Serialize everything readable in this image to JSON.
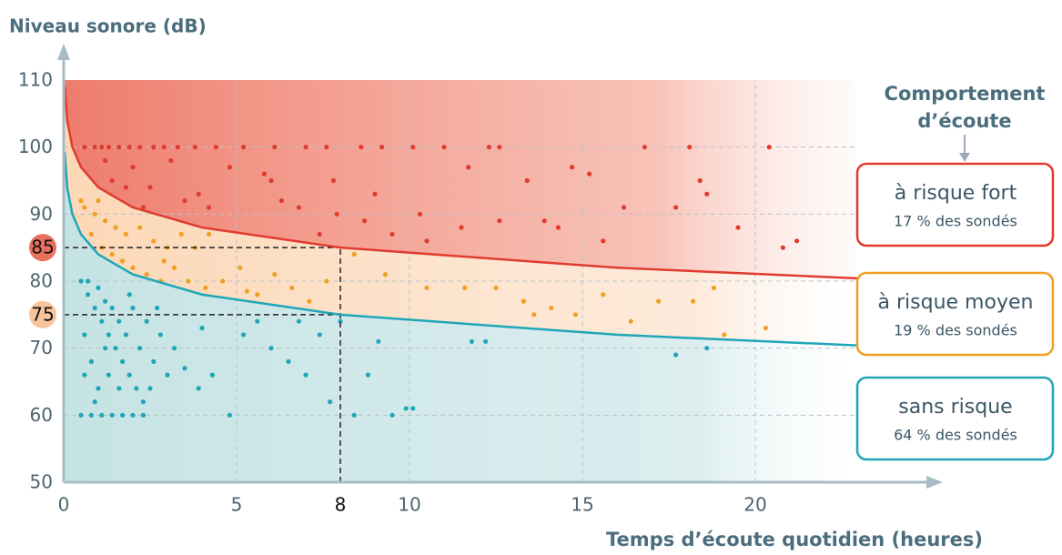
{
  "chart_data": {
    "type": "scatter",
    "y_label": "Niveau sonore (dB)",
    "x_label": "Temps d’écoute quotidien (heures)",
    "legend_title": [
      "Comportement",
      "d’écoute"
    ],
    "xlim": [
      0,
      25
    ],
    "ylim": [
      50,
      110
    ],
    "xticks": [
      0,
      5,
      8,
      10,
      15,
      20
    ],
    "yticks": [
      50,
      60,
      70,
      75,
      80,
      85,
      90,
      100,
      110
    ],
    "highlight_xticks": [
      8
    ],
    "highlight_yticks": [
      {
        "value": 85,
        "color": "#e9705c"
      },
      {
        "value": 75,
        "color": "#f7c49c"
      }
    ],
    "grid_x": [
      5,
      10,
      15,
      20
    ],
    "grid_y": [
      60,
      70,
      80,
      90,
      100
    ],
    "reference_lines": {
      "x": 8,
      "y": [
        85,
        75
      ]
    },
    "curves": [
      {
        "color": "#e03b2e",
        "x": [
          0.03,
          0.1,
          0.25,
          0.5,
          1,
          2,
          4,
          8,
          16,
          23
        ],
        "values": [
          109.2,
          104,
          100,
          97,
          94,
          91,
          88,
          85,
          82,
          80.4
        ]
      },
      {
        "color": "#1fa6b8",
        "x": [
          0.03,
          0.1,
          0.25,
          0.5,
          1,
          2,
          4,
          8,
          16,
          23
        ],
        "values": [
          99.2,
          94,
          90,
          87,
          84,
          81,
          78,
          75,
          72,
          70.4
        ]
      }
    ],
    "series": [
      {
        "name": "à risque fort",
        "share": "17 % des sondés",
        "color": "#e03b2e",
        "x": [
          0.6,
          0.9,
          1.1,
          1.3,
          1.6,
          1.9,
          2.2,
          2.6,
          2.9,
          3.3,
          3.8,
          4.4,
          5.2,
          6.1,
          7.0,
          7.6,
          8.6,
          9.2,
          10.1,
          11.0,
          12.3,
          12.6,
          16.8,
          18.1,
          20.4,
          1.2,
          2.0,
          3.1,
          4.8,
          6.0,
          7.8,
          1.4,
          2.5,
          3.9,
          5.8,
          9.0,
          11.7,
          13.4,
          14.7,
          15.2,
          18.4,
          4.2,
          6.8,
          7.9,
          8.7,
          9.5,
          10.3,
          12.6,
          14.3,
          16.2,
          17.7,
          18.6,
          20.8,
          21.2,
          15.6,
          11.5,
          2.3,
          3.5,
          1.8,
          13.9,
          19.5,
          7.4,
          6.3,
          10.5
        ],
        "values": [
          100,
          100,
          100,
          100,
          100,
          100,
          100,
          100,
          100,
          100,
          100,
          100,
          100,
          100,
          100,
          100,
          100,
          100,
          100,
          100,
          100,
          100,
          100,
          100,
          100,
          98,
          97,
          98,
          97,
          95,
          95,
          95,
          94,
          93,
          96,
          93,
          97,
          95,
          97,
          96,
          95,
          91,
          91,
          90,
          89,
          87,
          90,
          89,
          88,
          91,
          91,
          93,
          85,
          86,
          86,
          88,
          91,
          92,
          94,
          89,
          88,
          87,
          92,
          86
        ]
      },
      {
        "name": "à risque moyen",
        "share": "19 % des sondés",
        "color": "#f0a020",
        "x": [
          0.6,
          0.9,
          1.2,
          1.5,
          1.8,
          2.2,
          2.6,
          3.0,
          3.4,
          3.8,
          4.2,
          0.8,
          1.1,
          1.4,
          1.7,
          2.0,
          2.4,
          2.8,
          3.2,
          3.6,
          4.1,
          4.6,
          5.1,
          5.6,
          6.1,
          6.6,
          7.1,
          7.6,
          8.4,
          9.3,
          10.5,
          11.6,
          12.5,
          13.3,
          14.1,
          14.8,
          15.6,
          16.4,
          17.2,
          18.2,
          18.8,
          19.1,
          20.3,
          13.6,
          0.5,
          1.0,
          2.9,
          5.3
        ],
        "values": [
          91,
          90,
          89,
          88,
          87,
          88,
          86,
          85,
          87,
          85,
          87,
          87,
          85,
          84,
          83,
          82,
          81,
          80,
          82,
          80,
          79,
          80,
          82,
          78,
          81,
          79,
          77,
          80,
          84,
          81,
          79,
          79,
          79,
          77,
          76,
          75,
          78,
          74,
          77,
          77,
          79,
          72,
          73,
          75,
          92,
          92,
          83,
          78.5
        ]
      },
      {
        "name": "sans risque",
        "share": "64 % des sondés",
        "color": "#1fa6b8",
        "x": [
          0.5,
          0.7,
          0.9,
          1.1,
          1.3,
          1.5,
          1.7,
          1.9,
          2.1,
          2.3,
          0.5,
          0.8,
          1.1,
          1.4,
          1.7,
          2.0,
          2.3,
          0.6,
          0.8,
          1.0,
          1.2,
          1.4,
          1.6,
          1.8,
          2.0,
          2.2,
          2.4,
          2.6,
          2.8,
          3.0,
          0.6,
          0.9,
          1.3,
          1.6,
          1.9,
          2.5,
          2.7,
          3.2,
          3.5,
          3.9,
          4.3,
          4.8,
          5.2,
          5.6,
          6.0,
          6.5,
          7.0,
          7.4,
          7.7,
          8.0,
          8.4,
          8.8,
          9.1,
          9.5,
          9.9,
          10.1,
          11.8,
          12.2,
          17.7,
          18.6,
          4.0,
          6.8,
          0.7,
          1.0,
          1.2
        ],
        "values": [
          80,
          78,
          76,
          74,
          72,
          70,
          68,
          66,
          64,
          62,
          60,
          60,
          60,
          60,
          60,
          60,
          60,
          72,
          68,
          64,
          70,
          76,
          74,
          72,
          76,
          70,
          74,
          68,
          72,
          66,
          66,
          62,
          66,
          64,
          78,
          64,
          76,
          70,
          67,
          64,
          66,
          60,
          72,
          74,
          70,
          68,
          66,
          72,
          62,
          74,
          60,
          66,
          71,
          60,
          61,
          61,
          71,
          71,
          69,
          70,
          73,
          74,
          80,
          79,
          77
        ]
      }
    ]
  }
}
